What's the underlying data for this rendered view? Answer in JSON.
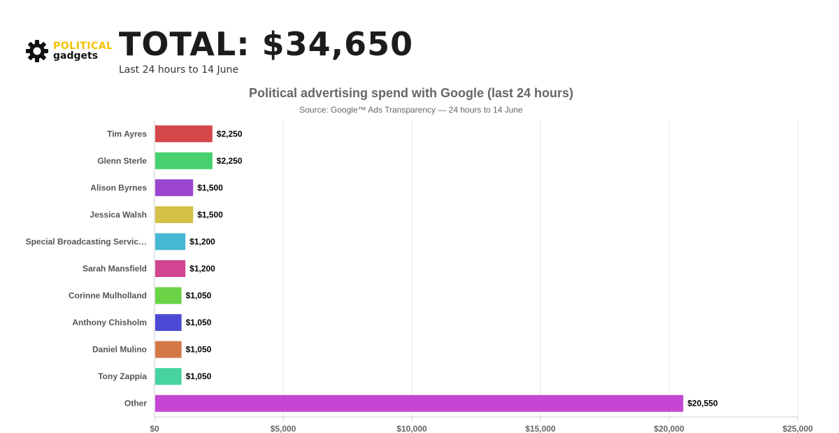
{
  "header": {
    "logo_top": "POLITICAL",
    "logo_bottom": "gadgets",
    "total": "TOTAL: $34,650",
    "subtitle": "Last 24 hours to 14 June"
  },
  "colors": {
    "bars": [
      "#d4474b",
      "#46d06e",
      "#9b45d1",
      "#d3c148",
      "#46b8d4",
      "#d14591",
      "#6ad346",
      "#4c49d4",
      "#d47848",
      "#46d3a0",
      "#c446d3"
    ]
  },
  "chart_data": {
    "type": "bar",
    "orientation": "horizontal",
    "title": "Political advertising spend with Google (last 24 hours)",
    "subtitle": "Source: Google™ Ads Transparency — 24 hours to 14 June",
    "categories": [
      "Tim Ayres",
      "Glenn Sterle",
      "Alison Byrnes",
      "Jessica Walsh",
      "Special Broadcasting Servic…",
      "Sarah Mansfield",
      "Corinne Mulholland",
      "Anthony Chisholm",
      "Daniel Mulino",
      "Tony Zappia",
      "Other"
    ],
    "values": [
      2250,
      2250,
      1500,
      1500,
      1200,
      1200,
      1050,
      1050,
      1050,
      1050,
      20550
    ],
    "data_labels": [
      "$2,250",
      "$2,250",
      "$1,500",
      "$1,500",
      "$1,200",
      "$1,200",
      "$1,050",
      "$1,050",
      "$1,050",
      "$1,050",
      "$20,550"
    ],
    "xlim": [
      0,
      25000
    ],
    "x_ticks": [
      0,
      5000,
      10000,
      15000,
      20000,
      25000
    ],
    "x_tick_labels": [
      "$0",
      "$5,000",
      "$10,000",
      "$15,000",
      "$20,000",
      "$25,000"
    ],
    "grid": true,
    "legend": "none"
  }
}
